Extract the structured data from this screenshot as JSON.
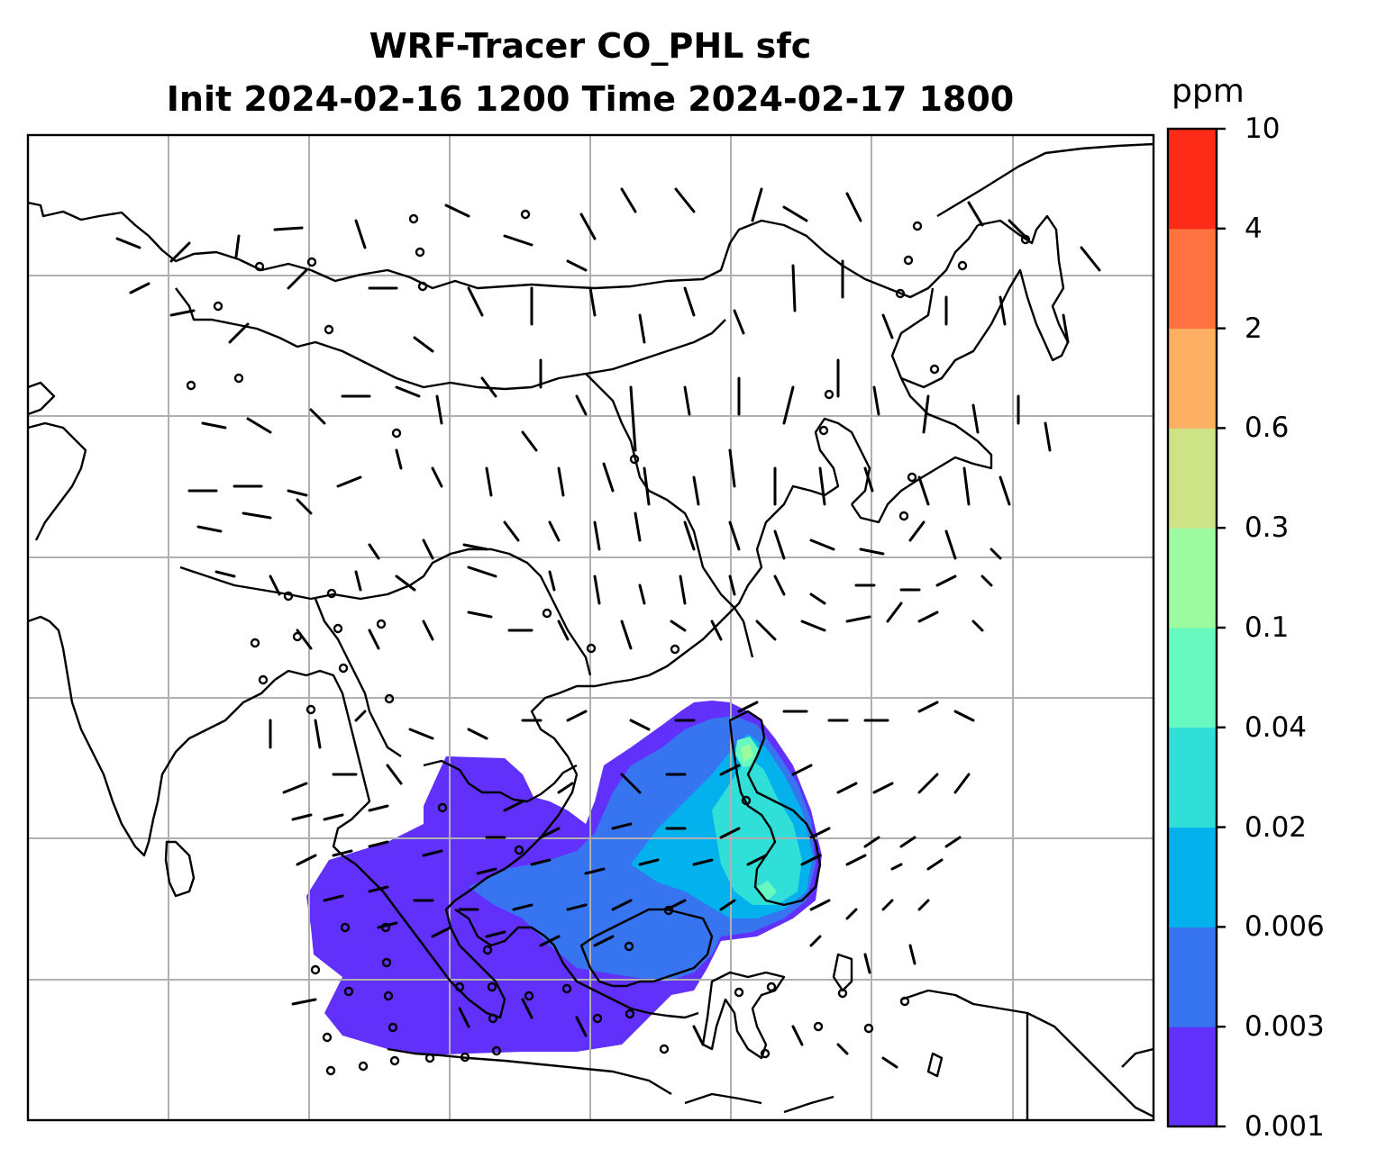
{
  "title": {
    "line1": "WRF-Tracer CO_PHL sfc",
    "line2": "Init 2024-02-16 1200 Time 2024-02-17 1800"
  },
  "colorbar": {
    "unit": "ppm",
    "levels": [
      "0.001",
      "0.003",
      "0.006",
      "0.02",
      "0.04",
      "0.1",
      "0.3",
      "0.6",
      "2",
      "4",
      "10"
    ],
    "colors": [
      "#6230fb",
      "#3674f0",
      "#03b2ec",
      "#30dfd8",
      "#68f9c0",
      "#9bfb9e",
      "#cde386",
      "#fdb064",
      "#fe7140",
      "#fe2a18"
    ]
  },
  "map": {
    "field": "CO_PHL",
    "gridlines": true
  }
}
